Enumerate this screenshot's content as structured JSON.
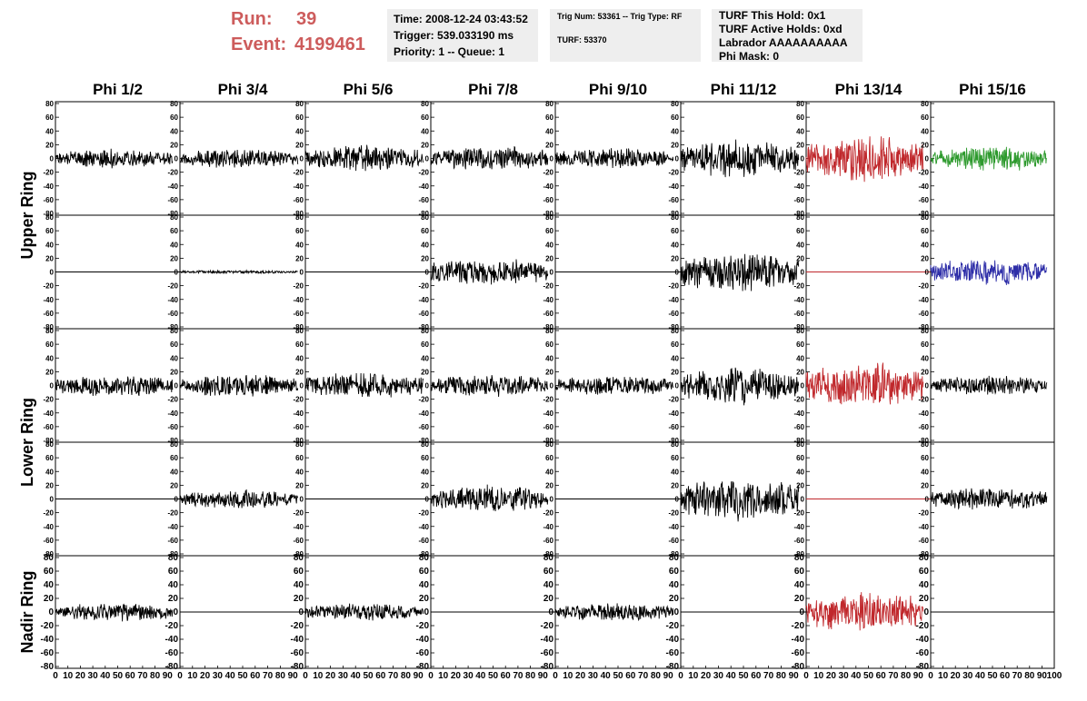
{
  "header": {
    "run_label": "Run:",
    "run_value": "39",
    "event_label": "Event:",
    "event_value": "4199461",
    "accent_color": "#cd5c5c"
  },
  "info_time": {
    "time": "Time: 2008-12-24 03:43:52",
    "trigger": "Trigger: 539.033190 ms",
    "priority": "Priority: 1 -- Queue: 1"
  },
  "info_trig": {
    "trig": "Trig Num: 53361 -- Trig Type: RF",
    "turf": "TURF: 53370"
  },
  "info_turf": {
    "this_hold": "TURF This Hold: 0x1",
    "active_holds": "TURF Active Holds: 0xd",
    "labrador": "Labrador AAAAAAAAAA",
    "phi_mask": "Phi Mask: 0"
  },
  "chart_data": {
    "type": "line",
    "columns": [
      "Phi 1/2",
      "Phi 3/4",
      "Phi 5/6",
      "Phi 7/8",
      "Phi 9/10",
      "Phi 11/12",
      "Phi 13/14",
      "Phi 15/16"
    ],
    "ring_labels": [
      "Upper Ring",
      "Lower Ring",
      "Nadir Ring"
    ],
    "ylim": [
      -80,
      80
    ],
    "y_ticks": [
      80,
      60,
      40,
      20,
      0,
      -20,
      -40,
      -60,
      -80
    ],
    "xlim": [
      0,
      100
    ],
    "x_ticks": [
      0,
      10,
      20,
      30,
      40,
      50,
      60,
      70,
      80,
      90,
      100
    ],
    "colors": {
      "default": "#000000",
      "red": "#c0282c",
      "green": "#2e9a2e",
      "blue": "#2e2ea8"
    },
    "rows": [
      {
        "cells": [
          {
            "amp": 12,
            "color": "default"
          },
          {
            "amp": 12,
            "color": "default"
          },
          {
            "amp": 16,
            "color": "default"
          },
          {
            "amp": 15,
            "color": "default"
          },
          {
            "amp": 13,
            "color": "default"
          },
          {
            "amp": 24,
            "color": "default"
          },
          {
            "amp": 28,
            "color": "red"
          },
          {
            "amp": 16,
            "color": "green"
          }
        ]
      },
      {
        "cells": [
          {
            "amp": 0,
            "color": "default"
          },
          {
            "amp": 2,
            "color": "default"
          },
          {
            "amp": 0,
            "color": "default"
          },
          {
            "amp": 17,
            "color": "default"
          },
          {
            "amp": 0,
            "color": "default"
          },
          {
            "amp": 26,
            "color": "default"
          },
          {
            "amp": 0,
            "color": "red"
          },
          {
            "amp": 17,
            "color": "blue"
          }
        ]
      },
      {
        "cells": [
          {
            "amp": 14,
            "color": "default"
          },
          {
            "amp": 14,
            "color": "default"
          },
          {
            "amp": 16,
            "color": "default"
          },
          {
            "amp": 14,
            "color": "default"
          },
          {
            "amp": 12,
            "color": "default"
          },
          {
            "amp": 24,
            "color": "default"
          },
          {
            "amp": 28,
            "color": "red"
          },
          {
            "amp": 12,
            "color": "default"
          }
        ]
      },
      {
        "cells": [
          {
            "amp": 0,
            "color": "default"
          },
          {
            "amp": 12,
            "color": "default"
          },
          {
            "amp": 0,
            "color": "default"
          },
          {
            "amp": 17,
            "color": "default"
          },
          {
            "amp": 0,
            "color": "default"
          },
          {
            "amp": 27,
            "color": "default"
          },
          {
            "amp": 0,
            "color": "red"
          },
          {
            "amp": 14,
            "color": "default"
          }
        ]
      },
      {
        "cells": [
          {
            "amp": 12,
            "color": "default"
          },
          {
            "amp": 0,
            "color": "default"
          },
          {
            "amp": 11,
            "color": "default"
          },
          {
            "amp": 0,
            "color": "default"
          },
          {
            "amp": 11,
            "color": "default"
          },
          {
            "amp": 0,
            "color": "default"
          },
          {
            "amp": 26,
            "color": "red"
          },
          {
            "amp": 0,
            "color": "default"
          }
        ]
      }
    ]
  }
}
